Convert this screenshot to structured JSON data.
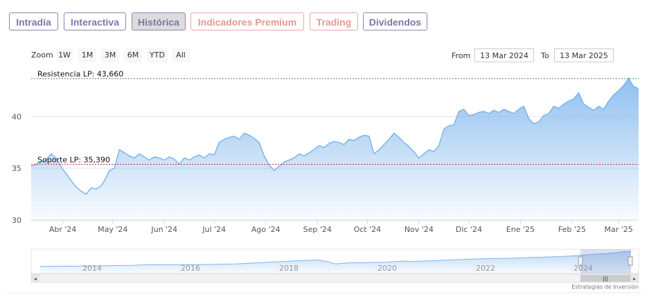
{
  "tabs": [
    {
      "label": "Intradía",
      "style": "purple"
    },
    {
      "label": "Interactiva",
      "style": "purple"
    },
    {
      "label": "Histórica",
      "style": "active"
    },
    {
      "label": "Indicadores Premium",
      "style": "salmon"
    },
    {
      "label": "Trading",
      "style": "salmon"
    },
    {
      "label": "Dividendos",
      "style": "purple"
    }
  ],
  "range_selector": {
    "zoom_label": "Zoom",
    "buttons": [
      "1W",
      "1M",
      "3M",
      "6M",
      "YTD",
      "All"
    ],
    "from_label": "From",
    "from_value": "13 Mar 2024",
    "to_label": "To",
    "to_value": "13 Mar 2025"
  },
  "colors": {
    "line": "#7cb5ec",
    "area_top": "#7cb5ec",
    "resistance": "#3a9b3a",
    "support": "#a83232",
    "tab_purple": "#7a78a8",
    "tab_salmon": "#e19a93"
  },
  "navigator": {
    "years": [
      "2014",
      "2016",
      "2018",
      "2020",
      "2022",
      "2024"
    ],
    "series": [
      13.8,
      14.0,
      14.1,
      14.3,
      14.2,
      14.4,
      14.6,
      14.8,
      15.2,
      15.6,
      15.7,
      16.0,
      16.8,
      17.0,
      16.9,
      17.1,
      17.3,
      17.5,
      17.2,
      17.4,
      17.6,
      17.8,
      18.2,
      18.6,
      19.3,
      20.2,
      21.0,
      21.9,
      22.8,
      23.6,
      24.5,
      25.3,
      25.8,
      26.4,
      23.4,
      18.5,
      20.1,
      21.0,
      20.8,
      21.2,
      21.8,
      22.1,
      23.1,
      24.2,
      23.5,
      23.9,
      24.6,
      25.2,
      26.1,
      26.8,
      27.5,
      28.0,
      28.6,
      29.2,
      29.4,
      29.6,
      29.8,
      30.4,
      31.2,
      31.5,
      32.0,
      32.8,
      33.5,
      34.1,
      35.5,
      36.7,
      38.0,
      39.0,
      40.2,
      42.5,
      43.1
    ]
  },
  "credit": "Estrategias de Inversión",
  "chart_data": {
    "type": "area",
    "x_axis_label": "",
    "y_axis_label": "",
    "ylim": [
      30,
      44.5
    ],
    "xlim": [
      "2024-03-13",
      "2025-03-13"
    ],
    "y_ticks": [
      30,
      35,
      40
    ],
    "x_ticks": [
      {
        "label": "Abr '24",
        "date": "2024-04-01"
      },
      {
        "label": "May '24",
        "date": "2024-05-01"
      },
      {
        "label": "Jun '24",
        "date": "2024-06-01"
      },
      {
        "label": "Jul '24",
        "date": "2024-07-01"
      },
      {
        "label": "Ago '24",
        "date": "2024-08-01"
      },
      {
        "label": "Sep '24",
        "date": "2024-09-01"
      },
      {
        "label": "Oct '24",
        "date": "2024-10-01"
      },
      {
        "label": "Nov '24",
        "date": "2024-11-01"
      },
      {
        "label": "Dic '24",
        "date": "2024-12-01"
      },
      {
        "label": "Ene '25",
        "date": "2025-01-01"
      },
      {
        "label": "Feb '25",
        "date": "2025-02-01"
      },
      {
        "label": "Mar '25",
        "date": "2025-03-01"
      }
    ],
    "grid": true,
    "reference_lines": [
      {
        "label": "Resistencia LP: 43,660",
        "value": 43.66,
        "kind": "resistance"
      },
      {
        "label": "Soporte LP: 35,390",
        "value": 35.39,
        "kind": "support"
      }
    ],
    "series": [
      {
        "x": [
          "2024-03-13",
          "2024-03-16",
          "2024-03-19",
          "2024-03-22",
          "2024-03-25",
          "2024-03-28",
          "2024-04-01",
          "2024-04-03",
          "2024-04-06",
          "2024-04-09",
          "2024-04-12",
          "2024-04-15",
          "2024-04-18",
          "2024-04-21",
          "2024-04-24",
          "2024-04-26",
          "2024-04-29",
          "2024-05-02",
          "2024-05-05",
          "2024-05-08",
          "2024-05-11",
          "2024-05-14",
          "2024-05-17",
          "2024-05-20",
          "2024-05-23",
          "2024-05-26",
          "2024-05-29",
          "2024-06-01",
          "2024-06-04",
          "2024-06-07",
          "2024-06-10",
          "2024-06-13",
          "2024-06-16",
          "2024-06-19",
          "2024-06-22",
          "2024-06-25",
          "2024-06-28",
          "2024-07-01",
          "2024-07-04",
          "2024-07-07",
          "2024-07-10",
          "2024-07-13",
          "2024-07-16",
          "2024-07-19",
          "2024-07-22",
          "2024-07-25",
          "2024-07-28",
          "2024-07-31",
          "2024-08-03",
          "2024-08-06",
          "2024-08-09",
          "2024-08-12",
          "2024-08-15",
          "2024-08-18",
          "2024-08-21",
          "2024-08-24",
          "2024-08-27",
          "2024-08-30",
          "2024-09-02",
          "2024-09-05",
          "2024-09-08",
          "2024-09-11",
          "2024-09-14",
          "2024-09-17",
          "2024-09-20",
          "2024-09-23",
          "2024-09-26",
          "2024-09-29",
          "2024-10-02",
          "2024-10-05",
          "2024-10-08",
          "2024-10-11",
          "2024-10-14",
          "2024-10-17",
          "2024-10-20",
          "2024-10-23",
          "2024-10-26",
          "2024-10-29",
          "2024-11-01",
          "2024-11-04",
          "2024-11-07",
          "2024-11-10",
          "2024-11-13",
          "2024-11-16",
          "2024-11-19",
          "2024-11-22",
          "2024-11-25",
          "2024-11-28",
          "2024-12-01",
          "2024-12-04",
          "2024-12-07",
          "2024-12-10",
          "2024-12-13",
          "2024-12-16",
          "2024-12-19",
          "2024-12-22",
          "2024-12-25",
          "2024-12-28",
          "2024-12-31",
          "2025-01-03",
          "2025-01-06",
          "2025-01-09",
          "2025-01-12",
          "2025-01-15",
          "2025-01-18",
          "2025-01-21",
          "2025-01-24",
          "2025-01-27",
          "2025-01-30",
          "2025-02-02",
          "2025-02-05",
          "2025-02-08",
          "2025-02-11",
          "2025-02-14",
          "2025-02-17",
          "2025-02-20",
          "2025-02-23",
          "2025-02-26",
          "2025-03-01",
          "2025-03-04",
          "2025-03-07",
          "2025-03-10",
          "2025-03-13"
        ],
        "y": [
          35.2,
          35.4,
          35.6,
          35.8,
          36.4,
          36.0,
          34.9,
          34.5,
          33.8,
          33.2,
          32.8,
          32.5,
          33.1,
          33.0,
          33.3,
          33.8,
          34.8,
          35.0,
          36.8,
          36.5,
          36.2,
          36.0,
          36.4,
          36.1,
          35.8,
          36.1,
          36.0,
          35.8,
          36.1,
          35.9,
          35.4,
          36.0,
          35.8,
          36.1,
          36.3,
          36.0,
          36.4,
          36.3,
          37.5,
          37.8,
          38.0,
          38.1,
          37.8,
          38.4,
          38.2,
          37.9,
          37.5,
          36.2,
          35.3,
          34.8,
          35.2,
          35.6,
          35.8,
          36.0,
          36.4,
          36.2,
          36.5,
          36.8,
          37.2,
          37.0,
          37.4,
          37.6,
          37.5,
          37.3,
          37.8,
          37.7,
          38.0,
          38.2,
          38.1,
          36.4,
          36.8,
          37.3,
          37.8,
          38.4,
          38.0,
          37.5,
          37.1,
          36.6,
          36.0,
          36.4,
          36.8,
          36.6,
          37.2,
          38.8,
          39.1,
          39.2,
          40.5,
          40.7,
          40.1,
          40.2,
          40.4,
          40.5,
          40.3,
          40.6,
          40.4,
          40.7,
          40.5,
          40.3,
          40.7,
          41.0,
          39.8,
          39.3,
          39.5,
          40.1,
          40.3,
          41.0,
          40.8,
          41.2,
          41.5,
          41.7,
          42.3,
          41.2,
          40.9,
          40.6,
          41.0,
          40.7,
          41.5,
          42.1,
          42.5,
          43.0,
          43.7,
          42.9,
          42.7
        ]
      }
    ]
  }
}
